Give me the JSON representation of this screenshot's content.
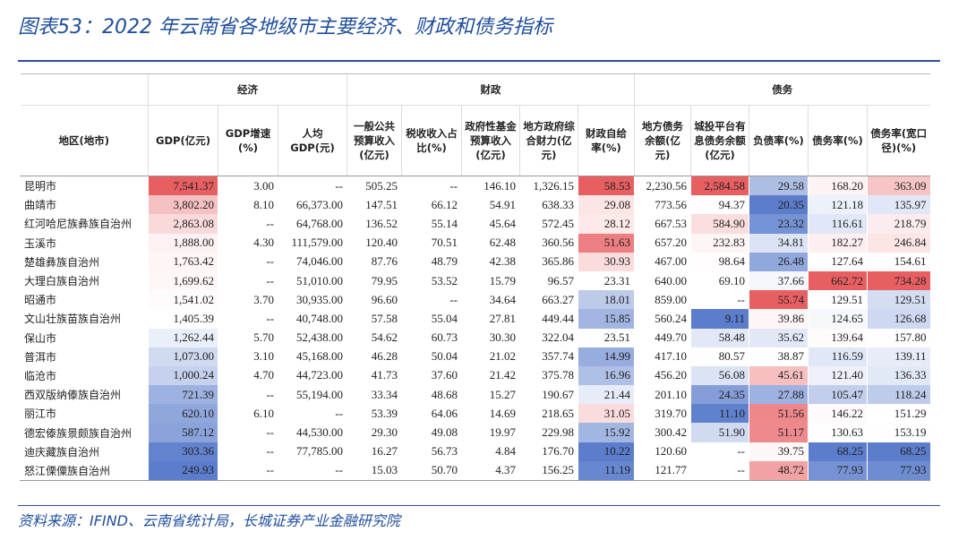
{
  "header": {
    "title": "图表53：2022 年云南省各地级市主要经济、财政和债务指标"
  },
  "table": {
    "row_header": "地区(地市)",
    "groups": [
      {
        "label": "经济",
        "columns": [
          {
            "label": "GDP(亿元)",
            "heat": true
          },
          {
            "label": "GDP增速(%)",
            "heat": false
          },
          {
            "label": "人均GDP(元)",
            "heat": false
          }
        ]
      },
      {
        "label": "财政",
        "columns": [
          {
            "label": "一般公共预算收入(亿元)",
            "heat": false
          },
          {
            "label": "税收收入占比(%)",
            "heat": false
          },
          {
            "label": "政府性基金预算收入(亿元)",
            "heat": false
          },
          {
            "label": "地方政府综合财力(亿元)",
            "heat": false
          },
          {
            "label": "财政自给率(%)",
            "heat": true
          }
        ]
      },
      {
        "label": "债务",
        "columns": [
          {
            "label": "地方债务余额(亿元)",
            "heat": false
          },
          {
            "label": "城投平台有息债务余额(亿元)",
            "heat": true
          },
          {
            "label": "负债率(%)",
            "heat": true
          },
          {
            "label": "债务率(%)",
            "heat": true
          },
          {
            "label": "债务率(宽口径)(%)",
            "heat": true
          }
        ]
      }
    ],
    "rows": [
      [
        "昆明市",
        "7,541.37",
        "3.00",
        "--",
        "505.25",
        "--",
        "146.10",
        "1,326.15",
        "58.53",
        "2,230.56",
        "2,584.58",
        "29.58",
        "168.20",
        "363.09"
      ],
      [
        "曲靖市",
        "3,802.20",
        "8.10",
        "66,373.00",
        "147.51",
        "66.12",
        "54.91",
        "638.33",
        "29.08",
        "773.56",
        "94.37",
        "20.35",
        "121.18",
        "135.97"
      ],
      [
        "红河哈尼族彝族自治州",
        "2,863.08",
        "--",
        "64,768.00",
        "136.52",
        "55.14",
        "45.64",
        "572.45",
        "28.12",
        "667.53",
        "584.90",
        "23.32",
        "116.61",
        "218.79"
      ],
      [
        "玉溪市",
        "1,888.00",
        "4.30",
        "111,579.00",
        "120.40",
        "70.51",
        "62.48",
        "360.56",
        "51.63",
        "657.20",
        "232.83",
        "34.81",
        "182.27",
        "246.84"
      ],
      [
        "楚雄彝族自治州",
        "1,763.42",
        "--",
        "74,046.00",
        "87.76",
        "48.79",
        "42.38",
        "365.86",
        "30.93",
        "467.00",
        "98.64",
        "26.48",
        "127.64",
        "154.61"
      ],
      [
        "大理白族自治州",
        "1,699.62",
        "--",
        "51,010.00",
        "79.95",
        "53.52",
        "15.79",
        "96.57",
        "23.31",
        "640.00",
        "69.10",
        "37.66",
        "662.72",
        "734.28"
      ],
      [
        "昭通市",
        "1,541.02",
        "3.70",
        "30,935.00",
        "96.60",
        "--",
        "34.64",
        "663.27",
        "18.01",
        "859.00",
        "--",
        "55.74",
        "129.51",
        "129.51"
      ],
      [
        "文山壮族苗族自治州",
        "1,405.39",
        "--",
        "40,748.00",
        "57.58",
        "55.04",
        "27.81",
        "449.44",
        "15.85",
        "560.24",
        "9.11",
        "39.86",
        "124.65",
        "126.68"
      ],
      [
        "保山市",
        "1,262.44",
        "5.70",
        "52,438.00",
        "54.62",
        "60.73",
        "30.30",
        "322.04",
        "23.51",
        "449.70",
        "58.48",
        "35.62",
        "139.64",
        "157.80"
      ],
      [
        "普洱市",
        "1,073.00",
        "3.10",
        "45,168.00",
        "46.28",
        "50.04",
        "21.02",
        "357.74",
        "14.99",
        "417.10",
        "80.57",
        "38.87",
        "116.59",
        "139.11"
      ],
      [
        "临沧市",
        "1,000.24",
        "4.70",
        "44,723.00",
        "41.73",
        "37.60",
        "21.42",
        "375.78",
        "16.96",
        "456.20",
        "56.08",
        "45.61",
        "121.40",
        "136.33"
      ],
      [
        "西双版纳傣族自治州",
        "721.39",
        "--",
        "55,194.00",
        "33.34",
        "48.68",
        "15.27",
        "190.67",
        "21.44",
        "201.10",
        "24.35",
        "27.88",
        "105.47",
        "118.24"
      ],
      [
        "丽江市",
        "620.10",
        "6.10",
        "--",
        "53.39",
        "64.06",
        "14.69",
        "218.65",
        "31.05",
        "319.70",
        "11.10",
        "51.56",
        "146.22",
        "151.29"
      ],
      [
        "德宏傣族景颇族自治州",
        "587.12",
        "--",
        "44,530.00",
        "29.30",
        "49.08",
        "19.97",
        "229.98",
        "15.92",
        "300.42",
        "51.90",
        "51.17",
        "130.63",
        "153.19"
      ],
      [
        "迪庆藏族自治州",
        "303.36",
        "--",
        "77,785.00",
        "16.27",
        "56.73",
        "4.84",
        "176.70",
        "10.22",
        "120.60",
        "--",
        "39.75",
        "68.25",
        "68.25"
      ],
      [
        "怒江傈僳族自治州",
        "249.93",
        "--",
        "--",
        "15.03",
        "50.70",
        "4.37",
        "156.25",
        "11.19",
        "121.77",
        "--",
        "48.72",
        "77.93",
        "77.93"
      ]
    ]
  },
  "footer": {
    "source": "资料来源：IFIND、云南省统计局，长城证券产业金融研究院"
  }
}
